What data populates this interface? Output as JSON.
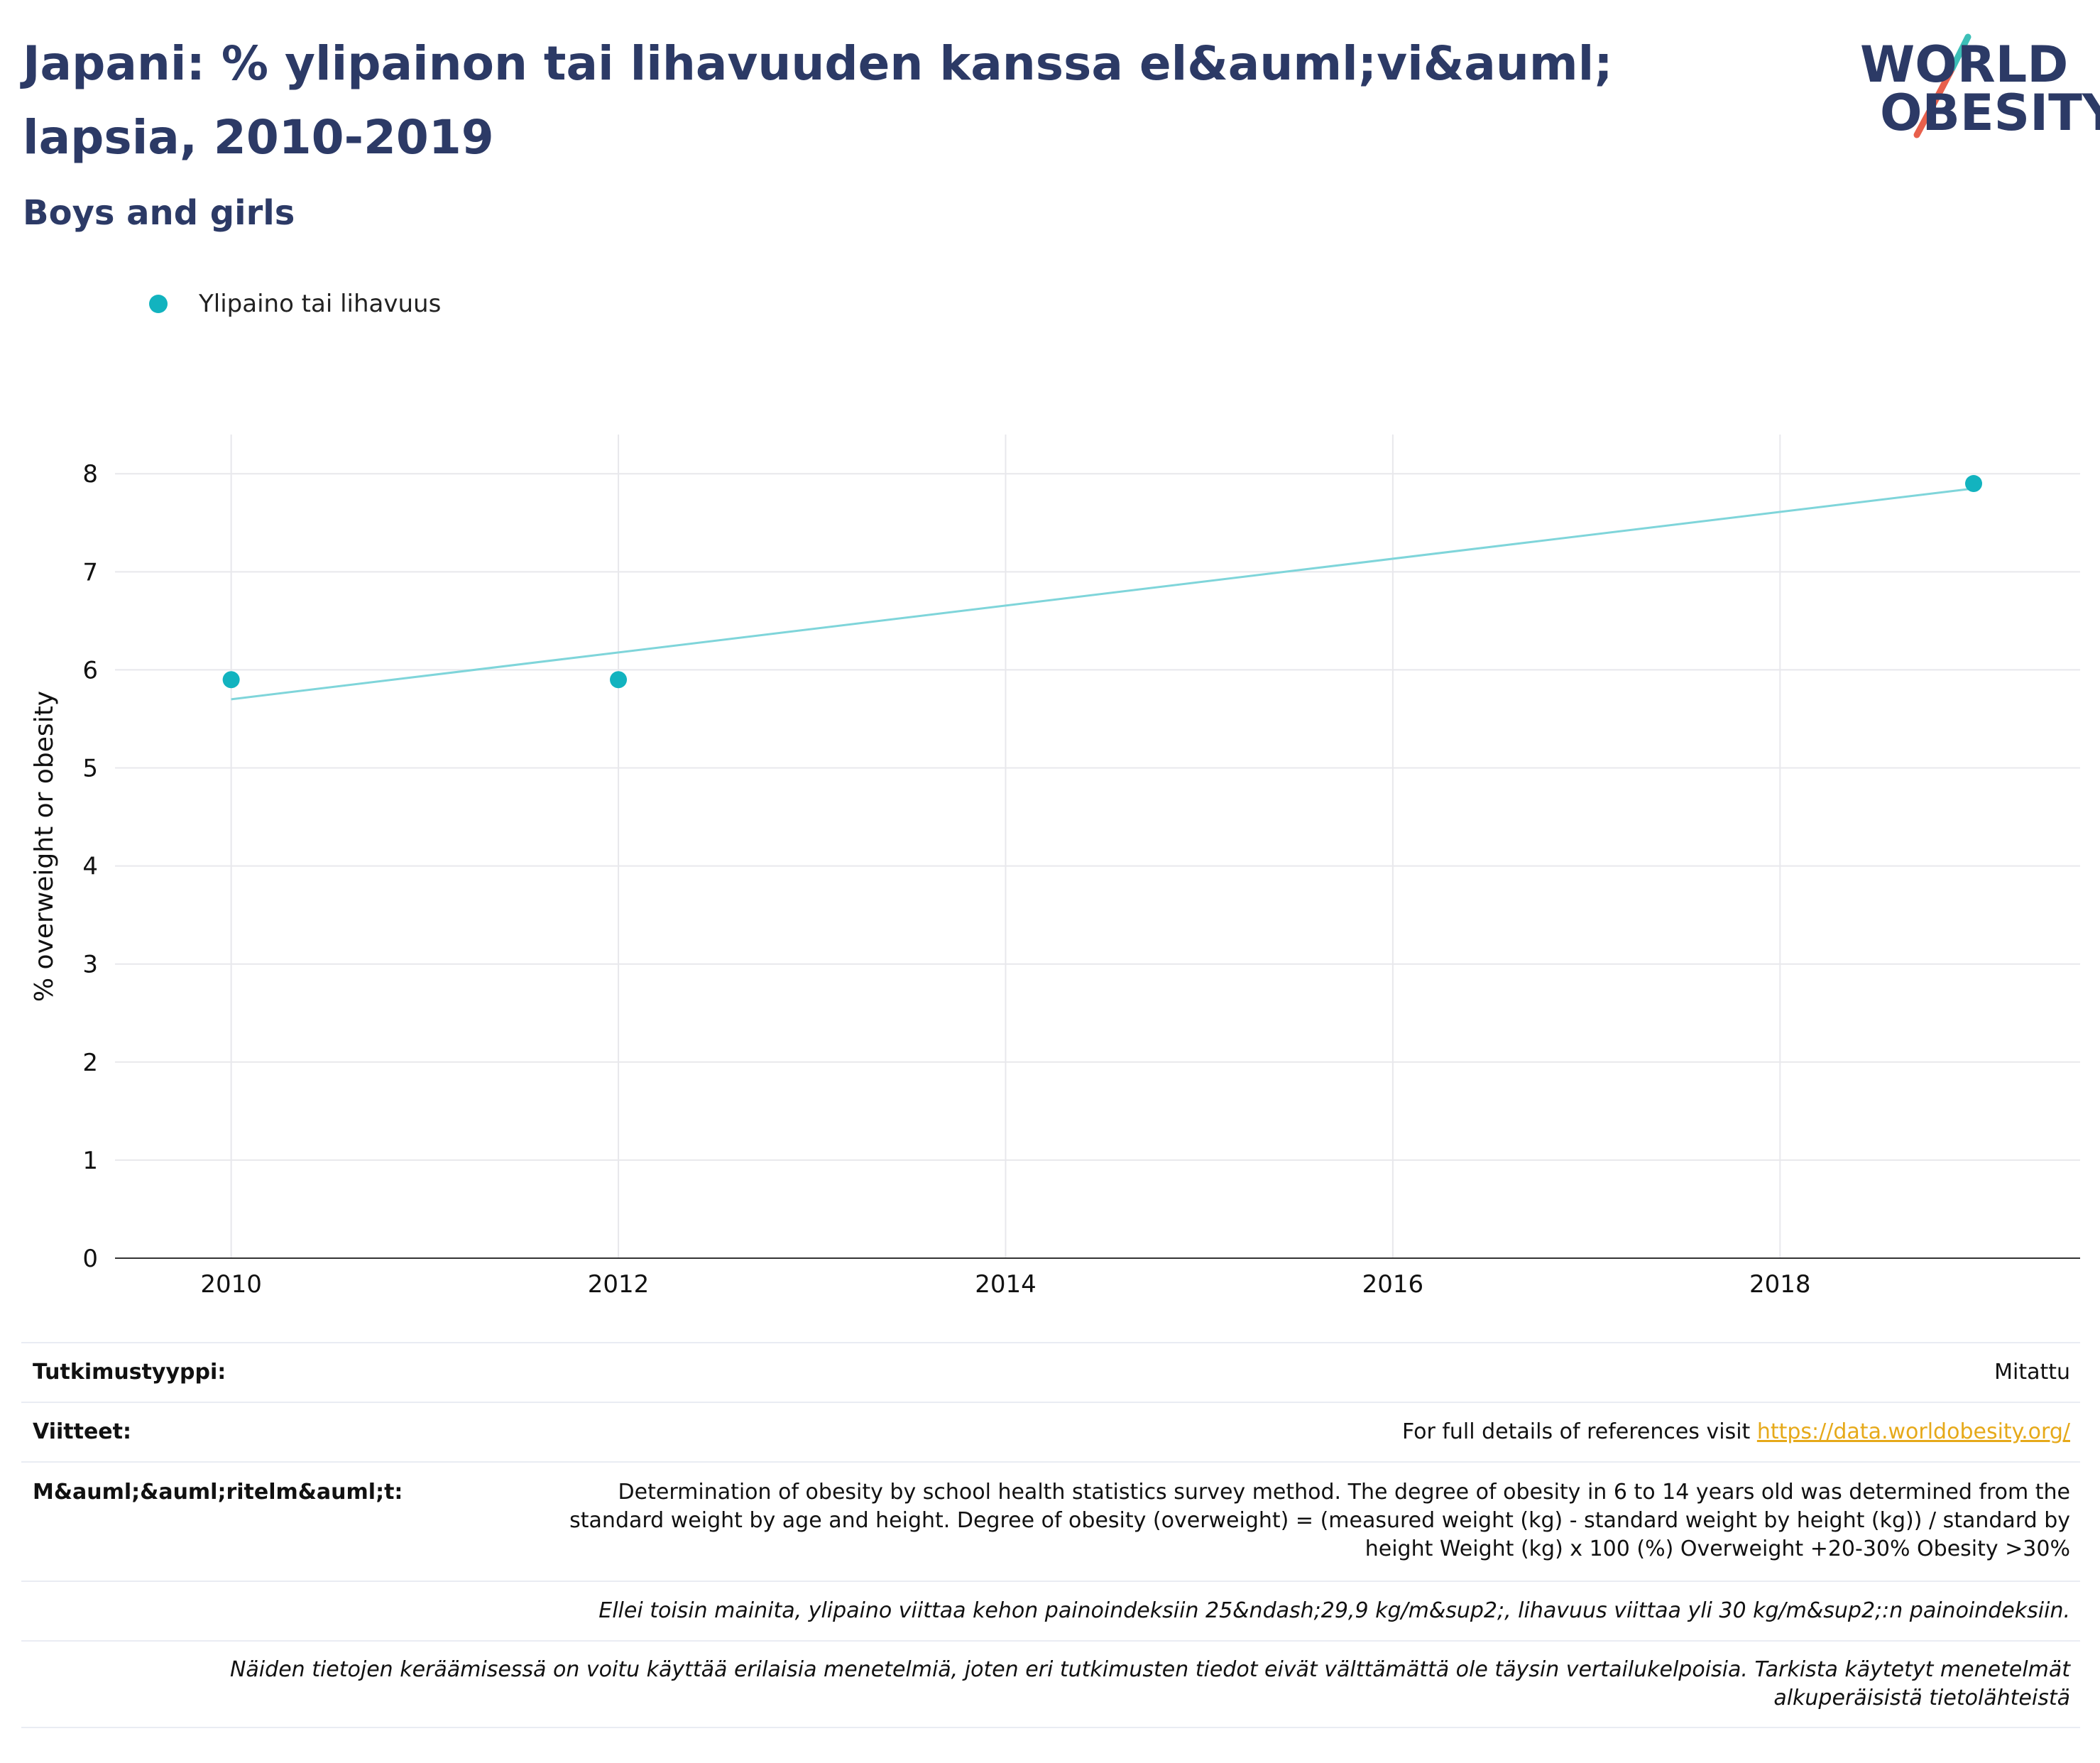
{
  "header": {
    "title": "Japani: % ylipainon tai lihavuuden kanssa el&auml;vi&auml; lapsia, 2010-2019",
    "subtitle": "Boys and girls"
  },
  "logo": {
    "line1": "WORLD",
    "line2": "OBESITY",
    "colors": {
      "text": "#2c3a66",
      "teal_slash": "#3cbfb7",
      "red_slash": "#e8604c"
    }
  },
  "legend": {
    "label": "Ylipaino tai lihavuus",
    "color": "#12b3bf"
  },
  "chart_data": {
    "type": "scatter",
    "ylabel": "% overweight or obesity",
    "xlabel": "",
    "xlim": [
      2009.4,
      2019.55
    ],
    "ylim": [
      0,
      8.4
    ],
    "x_ticks": [
      2010,
      2012,
      2014,
      2016,
      2018
    ],
    "y_ticks": [
      0,
      1,
      2,
      3,
      4,
      5,
      6,
      7,
      8
    ],
    "grid": true,
    "series": [
      {
        "name": "Ylipaino tai lihavuus",
        "color": "#12b3bf",
        "points": [
          {
            "x": 2010,
            "y": 5.9
          },
          {
            "x": 2012,
            "y": 5.9
          },
          {
            "x": 2019,
            "y": 7.9
          }
        ]
      }
    ],
    "trendline": {
      "color": "#7fd5da",
      "start": {
        "x": 2010,
        "y": 5.7
      },
      "end": {
        "x": 2019,
        "y": 7.85
      }
    }
  },
  "info": {
    "study_type_label": "Tutkimustyyppi:",
    "study_type_value": "Mitattu",
    "references_label": "Viitteet:",
    "references_text": "For full details of references visit ",
    "references_link": "https://data.worldobesity.org/",
    "definitions_label": "M&auml;&auml;ritelm&auml;t:",
    "definitions_text": "Determination of obesity by school health statistics survey method. The degree of obesity in 6 to 14 years old was determined from the standard weight by age and height. Degree of obesity (overweight) = (measured weight (kg) - standard weight by height (kg)) / standard by height Weight (kg) x 100 (%) Overweight +20-30% Obesity >30%",
    "note_bmi": "Ellei toisin mainita, ylipaino viittaa kehon painoindeksiin 25&ndash;29,9 kg/m&sup2;, lihavuus viittaa yli 30 kg/m&sup2;:n painoindeksiin.",
    "note_methods": "Näiden tietojen keräämisessä on voitu käyttää erilaisia menetelmiä, joten eri tutkimusten tiedot eivät välttämättä ole täysin vertailukelpoisia. Tarkista käytetyt menetelmät alkuperäisistä tietolähteistä"
  }
}
